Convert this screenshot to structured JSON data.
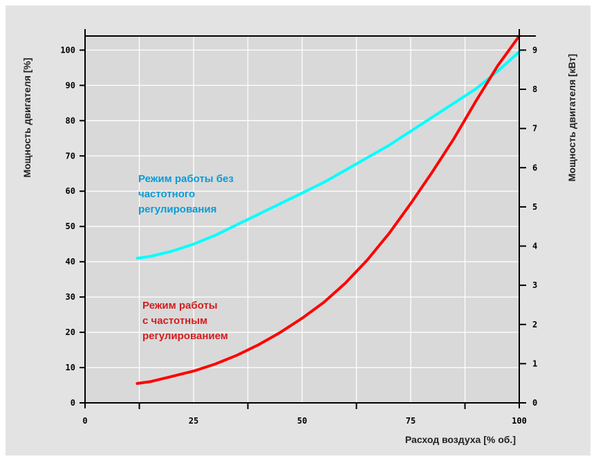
{
  "chart_data": {
    "type": "line",
    "xlabel": "Расход воздуха [% об.]",
    "ylabel_left": "Мощность двигателя [%]",
    "ylabel_right": "Мощность двигателя [кВт]",
    "xlim": [
      0,
      100
    ],
    "ylim_left": [
      0,
      104
    ],
    "ylim_right": [
      0,
      9.36
    ],
    "x_ticks": [
      "0",
      "25",
      "50",
      "75",
      "100"
    ],
    "y_ticks_left": [
      "0",
      "10",
      "20",
      "30",
      "40",
      "50",
      "60",
      "70",
      "80",
      "90",
      "100"
    ],
    "y_ticks_right": [
      "0",
      "1",
      "2",
      "3",
      "4",
      "5",
      "6",
      "7",
      "8",
      "9"
    ],
    "grid": true,
    "series": [
      {
        "name": "Режим работы без частотного регулирования",
        "label_lines": [
          "Режим работы без",
          "частотного",
          "регулирования"
        ],
        "color": "#00ffff",
        "x": [
          12,
          15,
          20,
          25,
          30,
          35,
          40,
          45,
          50,
          55,
          60,
          65,
          70,
          75,
          80,
          85,
          90,
          95,
          100
        ],
        "y": [
          41,
          41.5,
          43,
          45,
          47.5,
          50.5,
          53.5,
          56.5,
          59.5,
          62.5,
          66,
          69.5,
          73,
          77,
          81,
          85,
          89,
          94,
          99.5
        ]
      },
      {
        "name": "Режим работы с частотным регулированием",
        "label_lines": [
          "Режим работы",
          "с частотным",
          "регулированием"
        ],
        "color": "#ff0000",
        "x": [
          12,
          15,
          20,
          25,
          30,
          35,
          40,
          45,
          50,
          55,
          60,
          65,
          70,
          75,
          80,
          85,
          90,
          95,
          100
        ],
        "y": [
          5.5,
          6,
          7.5,
          9,
          11,
          13.5,
          16.5,
          20,
          24,
          28.5,
          34,
          40.5,
          48,
          56.5,
          65.5,
          75,
          85.5,
          95.5,
          104
        ]
      }
    ]
  },
  "colors": {
    "background": "#e3e3e3",
    "plot_area": "#d9d9d9",
    "grid": "#ffffff",
    "axis": "#000000",
    "blue_label": "#0a9bd6",
    "red_label": "#d21e1e"
  }
}
